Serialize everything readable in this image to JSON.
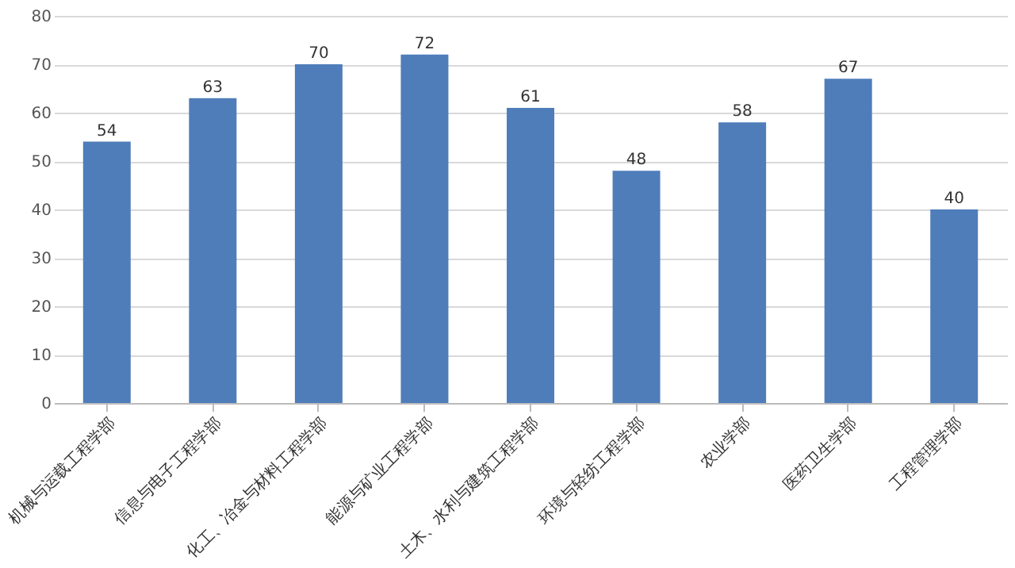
{
  "chart_data": {
    "type": "bar",
    "categories": [
      "机械与运载工程学部",
      "信息与电子工程学部",
      "化工、冶金与材料工程学部",
      "能源与矿业工程学部",
      "土木、水利与建筑工程学部",
      "环境与轻纺工程学部",
      "农业学部",
      "医药卫生学部",
      "工程管理学部"
    ],
    "values": [
      54,
      63,
      70,
      72,
      61,
      48,
      58,
      67,
      40
    ],
    "color": "#4f7dba",
    "ylim": [
      0,
      80
    ],
    "yticks": [
      0,
      10,
      20,
      30,
      40,
      50,
      60,
      70,
      80
    ],
    "grid": "y",
    "data_labels": true
  }
}
